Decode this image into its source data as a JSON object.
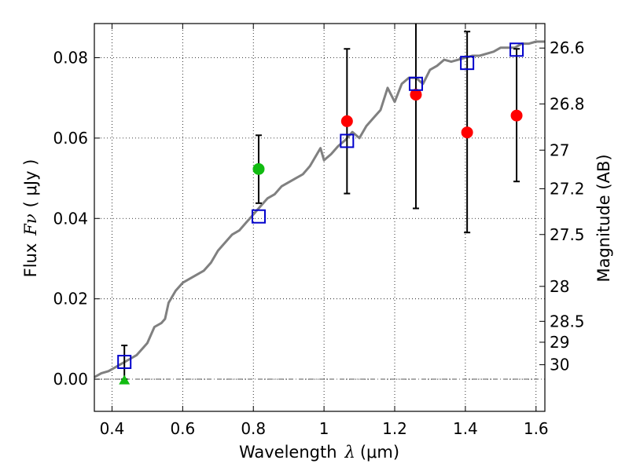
{
  "chart_data": {
    "type": "scatter",
    "xlabel": "Wavelength",
    "xlabel_symbol": "λ",
    "xlabel_unit": "(μm)",
    "ylabel": "Flux",
    "ylabel_symbol": "Fν",
    "ylabel_unit": "( μJy )",
    "ylabel_right": "Magnitude (AB)",
    "xlim": [
      0.35,
      1.625
    ],
    "ylim": [
      -0.008,
      0.0885
    ],
    "grid": true,
    "x_ticks": [
      0.4,
      0.6,
      0.8,
      1.0,
      1.2,
      1.4,
      1.6
    ],
    "x_tick_labels": [
      "0.4",
      "0.6",
      "0.8",
      "1",
      "1.2",
      "1.4",
      "1.6"
    ],
    "y_ticks": [
      0.0,
      0.02,
      0.04,
      0.06,
      0.08
    ],
    "y_tick_labels": [
      "0.00",
      "0.02",
      "0.04",
      "0.06",
      "0.08"
    ],
    "mag_ticks": [
      {
        "label": "26.6",
        "flux": 0.0824
      },
      {
        "label": "26.8",
        "flux": 0.0685
      },
      {
        "label": "27",
        "flux": 0.057
      },
      {
        "label": "27.2",
        "flux": 0.0474
      },
      {
        "label": "27.5",
        "flux": 0.036
      },
      {
        "label": "28",
        "flux": 0.0231
      },
      {
        "label": "28.5",
        "flux": 0.0144
      },
      {
        "label": "29",
        "flux": 0.0092
      },
      {
        "label": "30",
        "flux": 0.0036
      }
    ],
    "zero_line": {
      "y": 0.0,
      "style": "dashdot"
    },
    "colors": {
      "model": "#808080",
      "synthetic": "#0000cc",
      "red_points": "#ff0000",
      "green_points": "#11bb11",
      "errorbars": "#000000"
    },
    "model_spectrum": {
      "x": [
        0.35,
        0.37,
        0.39,
        0.41,
        0.43,
        0.45,
        0.47,
        0.49,
        0.5,
        0.52,
        0.54,
        0.55,
        0.56,
        0.58,
        0.6,
        0.62,
        0.64,
        0.66,
        0.68,
        0.7,
        0.72,
        0.74,
        0.76,
        0.78,
        0.8,
        0.82,
        0.84,
        0.86,
        0.88,
        0.9,
        0.92,
        0.94,
        0.96,
        0.98,
        0.99,
        1.0,
        1.02,
        1.04,
        1.06,
        1.08,
        1.1,
        1.12,
        1.14,
        1.16,
        1.18,
        1.2,
        1.22,
        1.24,
        1.26,
        1.28,
        1.3,
        1.32,
        1.34,
        1.36,
        1.38,
        1.4,
        1.42,
        1.44,
        1.46,
        1.48,
        1.5,
        1.52,
        1.54,
        1.56,
        1.58,
        1.6,
        1.625
      ],
      "y": [
        0.0005,
        0.0015,
        0.002,
        0.003,
        0.004,
        0.005,
        0.006,
        0.008,
        0.009,
        0.013,
        0.014,
        0.015,
        0.019,
        0.022,
        0.024,
        0.025,
        0.026,
        0.027,
        0.029,
        0.032,
        0.034,
        0.036,
        0.037,
        0.039,
        0.041,
        0.043,
        0.045,
        0.046,
        0.048,
        0.049,
        0.05,
        0.051,
        0.053,
        0.056,
        0.0575,
        0.0545,
        0.056,
        0.058,
        0.0595,
        0.0615,
        0.06,
        0.063,
        0.065,
        0.067,
        0.0725,
        0.069,
        0.0735,
        0.075,
        0.075,
        0.0735,
        0.077,
        0.078,
        0.0795,
        0.079,
        0.0795,
        0.08,
        0.0805,
        0.0805,
        0.081,
        0.0815,
        0.0825,
        0.0825,
        0.0825,
        0.0835,
        0.0835,
        0.084,
        0.084
      ]
    },
    "synthetic_photometry": {
      "x": [
        0.435,
        0.815,
        1.065,
        1.26,
        1.405,
        1.545
      ],
      "y": [
        0.0043,
        0.0405,
        0.0593,
        0.0735,
        0.0787,
        0.082
      ]
    },
    "observed_red": {
      "x": [
        1.065,
        1.26,
        1.405,
        1.545
      ],
      "y": [
        0.0642,
        0.0708,
        0.0614,
        0.0656
      ],
      "err_low": [
        0.0462,
        0.0425,
        0.0365,
        0.0492
      ],
      "err_high": [
        0.0822,
        0.0885,
        0.0865,
        0.0822
      ]
    },
    "observed_green": {
      "x": [
        0.815
      ],
      "y": [
        0.0523
      ],
      "err_low": [
        0.0438
      ],
      "err_high": [
        0.0607
      ]
    },
    "upper_limit": {
      "x": [
        0.435
      ],
      "y": [
        -0.0003
      ],
      "err_low": [
        0.0
      ],
      "err_high": [
        0.0084
      ]
    }
  }
}
